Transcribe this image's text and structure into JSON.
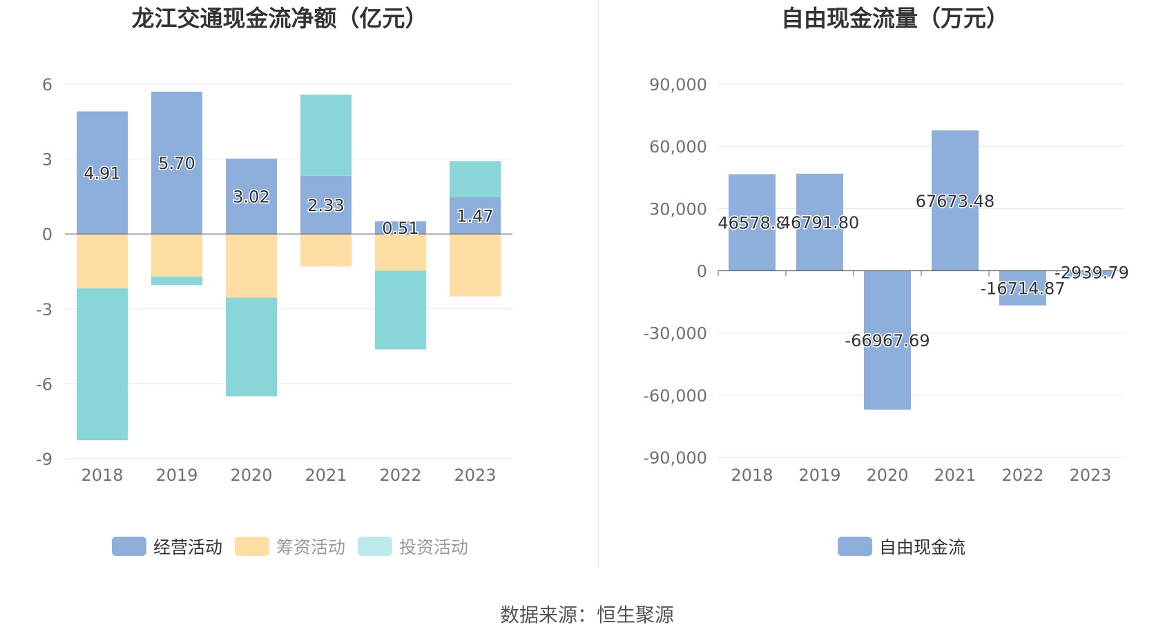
{
  "source": "数据来源：恒生聚源",
  "colors": {
    "operating": "#8eaedb",
    "financing": "#fedea4",
    "investing": "#89d6d9",
    "free": "#8eaedb",
    "grid": "#e0e5f0",
    "axis_text": "#6e7079",
    "title": "#333333",
    "zero_line": "#666666"
  },
  "chart_data": [
    {
      "type": "bar",
      "stacked": true,
      "title": "龙江交通现金流净额（亿元）",
      "categories": [
        "2018",
        "2019",
        "2020",
        "2021",
        "2022",
        "2023"
      ],
      "ylim": [
        -9,
        6
      ],
      "yticks": [
        6,
        3,
        0,
        -3,
        -6,
        -9
      ],
      "series": [
        {
          "name": "经营活动",
          "key": "operating",
          "values": [
            4.91,
            5.7,
            3.02,
            2.33,
            0.51,
            1.47
          ],
          "labels": [
            "4.91",
            "5.70",
            "3.02",
            "2.33",
            "0.51",
            "1.47"
          ]
        },
        {
          "name": "筹资活动",
          "key": "financing",
          "values": [
            -2.18,
            -1.7,
            -2.55,
            -1.3,
            -1.47,
            -2.5
          ]
        },
        {
          "name": "投资活动",
          "key": "investing",
          "values": [
            -6.08,
            -0.35,
            -3.95,
            3.25,
            -3.15,
            1.45
          ]
        }
      ],
      "legend": [
        "经营活动",
        "筹资活动",
        "投资活动"
      ],
      "legend_position": "bottom"
    },
    {
      "type": "bar",
      "title": "自由现金流量（万元）",
      "categories": [
        "2018",
        "2019",
        "2020",
        "2021",
        "2022",
        "2023"
      ],
      "ylim": [
        -90000,
        90000
      ],
      "yticks": [
        "90,000",
        "60,000",
        "30,000",
        "0",
        "-30,000",
        "-60,000",
        "-90,000"
      ],
      "series": [
        {
          "name": "自由现金流",
          "key": "free",
          "values": [
            46578.8,
            46791.8,
            -66967.69,
            67673.48,
            -16714.87,
            -2939.79
          ],
          "labels": [
            "46578.8",
            "46791.80",
            "-66967.69",
            "67673.48",
            "-16714.87",
            "-2939.79"
          ]
        }
      ],
      "legend": [
        "自由现金流"
      ],
      "legend_position": "bottom"
    }
  ]
}
